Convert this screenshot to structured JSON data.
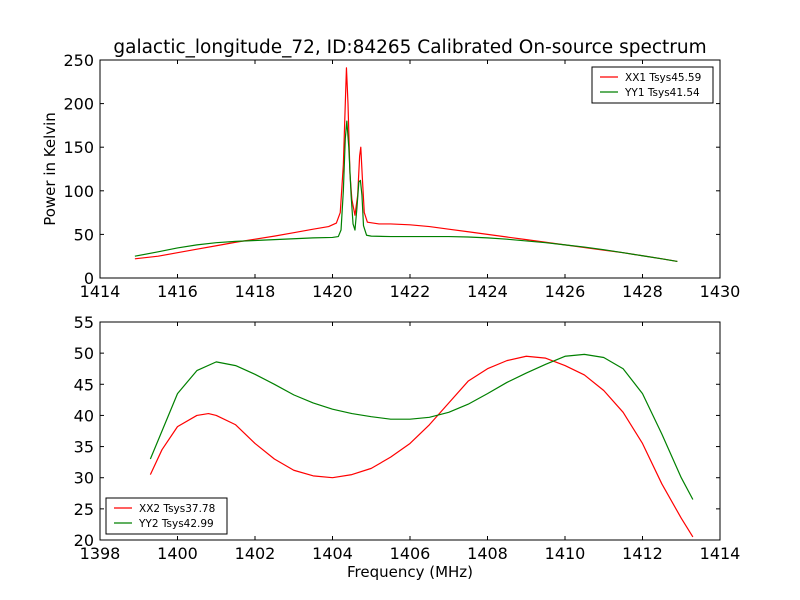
{
  "figure": {
    "title": "galactic_longitude_72, ID:84265 Calibrated On-source spectrum",
    "xlabel": "Frequency (MHz)",
    "ylabel": "Power in Kelvin"
  },
  "colors": {
    "red": "#ff0000",
    "green": "#008000"
  },
  "chart_data": [
    {
      "type": "line",
      "title": "galactic_longitude_72, ID:84265 Calibrated On-source spectrum",
      "ylabel": "Power in Kelvin",
      "xlabel": "",
      "xlim": [
        1414,
        1430
      ],
      "ylim": [
        0,
        250
      ],
      "xticks": [
        "1414",
        "1416",
        "1418",
        "1420",
        "1422",
        "1424",
        "1426",
        "1428",
        "1430"
      ],
      "yticks": [
        "0",
        "50",
        "100",
        "150",
        "200",
        "250"
      ],
      "grid": false,
      "legend_placement": "top-right",
      "series": [
        {
          "name": "XX1 Tsys45.59",
          "color": "#ff0000",
          "points": [
            [
              1414.9,
              22
            ],
            [
              1415.5,
              25
            ],
            [
              1416,
              29
            ],
            [
              1416.5,
              33
            ],
            [
              1417,
              37
            ],
            [
              1417.5,
              41
            ],
            [
              1418,
              44.5
            ],
            [
              1418.5,
              48
            ],
            [
              1419,
              52
            ],
            [
              1419.5,
              56
            ],
            [
              1419.9,
              59
            ],
            [
              1420.1,
              63
            ],
            [
              1420.2,
              75
            ],
            [
              1420.28,
              130
            ],
            [
              1420.33,
              200
            ],
            [
              1420.36,
              241
            ],
            [
              1420.4,
              200
            ],
            [
              1420.45,
              120
            ],
            [
              1420.5,
              90
            ],
            [
              1420.58,
              72
            ],
            [
              1420.65,
              95
            ],
            [
              1420.7,
              140
            ],
            [
              1420.73,
              150
            ],
            [
              1420.77,
              115
            ],
            [
              1420.82,
              75
            ],
            [
              1420.9,
              64
            ],
            [
              1421.2,
              62
            ],
            [
              1421.5,
              62
            ],
            [
              1422,
              61
            ],
            [
              1422.5,
              59
            ],
            [
              1423,
              56
            ],
            [
              1423.5,
              53
            ],
            [
              1424,
              50
            ],
            [
              1424.5,
              47
            ],
            [
              1425,
              44
            ],
            [
              1425.5,
              41
            ],
            [
              1426,
              38
            ],
            [
              1426.5,
              35
            ],
            [
              1427,
              32
            ],
            [
              1427.5,
              29
            ],
            [
              1428,
              25.5
            ],
            [
              1428.5,
              22
            ],
            [
              1428.9,
              19
            ]
          ]
        },
        {
          "name": "YY1 Tsys41.54",
          "color": "#008000",
          "points": [
            [
              1414.9,
              25
            ],
            [
              1415.5,
              30
            ],
            [
              1416,
              34.5
            ],
            [
              1416.5,
              38
            ],
            [
              1417,
              40.5
            ],
            [
              1417.5,
              42
            ],
            [
              1418,
              43
            ],
            [
              1418.5,
              44
            ],
            [
              1419,
              45
            ],
            [
              1419.5,
              46
            ],
            [
              1420,
              46.5
            ],
            [
              1420.15,
              47.5
            ],
            [
              1420.22,
              55
            ],
            [
              1420.28,
              100
            ],
            [
              1420.33,
              160
            ],
            [
              1420.37,
              180
            ],
            [
              1420.42,
              150
            ],
            [
              1420.48,
              95
            ],
            [
              1420.53,
              62
            ],
            [
              1420.58,
              55
            ],
            [
              1420.63,
              80
            ],
            [
              1420.68,
              110
            ],
            [
              1420.72,
              112
            ],
            [
              1420.76,
              95
            ],
            [
              1420.8,
              60
            ],
            [
              1420.88,
              49
            ],
            [
              1421,
              48
            ],
            [
              1421.5,
              47.5
            ],
            [
              1422,
              47.5
            ],
            [
              1422.5,
              47.5
            ],
            [
              1423,
              47.5
            ],
            [
              1423.5,
              47
            ],
            [
              1424,
              46
            ],
            [
              1424.5,
              44.5
            ],
            [
              1425,
              42.5
            ],
            [
              1425.5,
              40.5
            ],
            [
              1426,
              38
            ],
            [
              1426.5,
              35.5
            ],
            [
              1427,
              32.5
            ],
            [
              1427.5,
              29
            ],
            [
              1428,
              25.5
            ],
            [
              1428.5,
              22
            ],
            [
              1428.9,
              19
            ]
          ]
        }
      ]
    },
    {
      "type": "line",
      "title": "",
      "xlabel": "Frequency (MHz)",
      "ylabel": "",
      "xlim": [
        1398,
        1414
      ],
      "ylim": [
        20,
        55
      ],
      "xticks": [
        "1398",
        "1400",
        "1402",
        "1404",
        "1406",
        "1408",
        "1410",
        "1412",
        "1414"
      ],
      "yticks": [
        "20",
        "25",
        "30",
        "35",
        "40",
        "45",
        "50",
        "55"
      ],
      "grid": false,
      "legend_placement": "bottom-left",
      "series": [
        {
          "name": "XX2 Tsys37.78",
          "color": "#ff0000",
          "points": [
            [
              1399.3,
              30.5
            ],
            [
              1399.6,
              34.5
            ],
            [
              1400,
              38.2
            ],
            [
              1400.5,
              40
            ],
            [
              1400.8,
              40.3
            ],
            [
              1401,
              40
            ],
            [
              1401.5,
              38.5
            ],
            [
              1402,
              35.5
            ],
            [
              1402.5,
              33
            ],
            [
              1403,
              31.2
            ],
            [
              1403.5,
              30.3
            ],
            [
              1404,
              30
            ],
            [
              1404.5,
              30.5
            ],
            [
              1405,
              31.5
            ],
            [
              1405.5,
              33.3
            ],
            [
              1406,
              35.5
            ],
            [
              1406.5,
              38.5
            ],
            [
              1407,
              42
            ],
            [
              1407.5,
              45.5
            ],
            [
              1408,
              47.5
            ],
            [
              1408.5,
              48.8
            ],
            [
              1409,
              49.5
            ],
            [
              1409.5,
              49.2
            ],
            [
              1410,
              48
            ],
            [
              1410.5,
              46.5
            ],
            [
              1411,
              44
            ],
            [
              1411.5,
              40.5
            ],
            [
              1412,
              35.5
            ],
            [
              1412.5,
              29
            ],
            [
              1413,
              23.5
            ],
            [
              1413.3,
              20.5
            ]
          ]
        },
        {
          "name": "YY2 Tsys42.99",
          "color": "#008000",
          "points": [
            [
              1399.3,
              33
            ],
            [
              1399.6,
              37.5
            ],
            [
              1400,
              43.5
            ],
            [
              1400.5,
              47.2
            ],
            [
              1401,
              48.6
            ],
            [
              1401.5,
              48
            ],
            [
              1402,
              46.6
            ],
            [
              1402.5,
              45
            ],
            [
              1403,
              43.3
            ],
            [
              1403.5,
              42
            ],
            [
              1404,
              41
            ],
            [
              1404.5,
              40.3
            ],
            [
              1405,
              39.8
            ],
            [
              1405.5,
              39.4
            ],
            [
              1406,
              39.4
            ],
            [
              1406.5,
              39.7
            ],
            [
              1407,
              40.5
            ],
            [
              1407.5,
              41.8
            ],
            [
              1408,
              43.5
            ],
            [
              1408.5,
              45.3
            ],
            [
              1409,
              46.8
            ],
            [
              1409.5,
              48.2
            ],
            [
              1410,
              49.5
            ],
            [
              1410.5,
              49.8
            ],
            [
              1411,
              49.3
            ],
            [
              1411.5,
              47.5
            ],
            [
              1412,
              43.5
            ],
            [
              1412.5,
              37
            ],
            [
              1413,
              30
            ],
            [
              1413.3,
              26.5
            ]
          ]
        }
      ]
    }
  ]
}
